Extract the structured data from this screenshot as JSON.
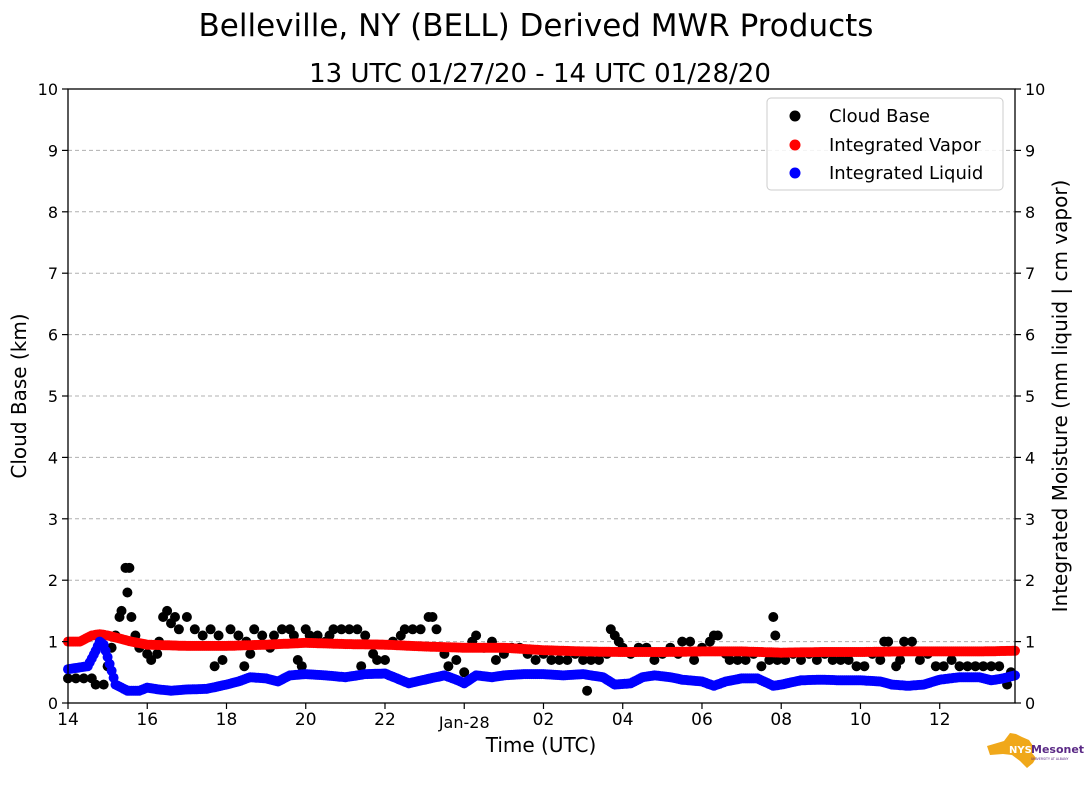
{
  "chart_data": {
    "type": "scatter",
    "title": "Belleville, NY (BELL) Derived MWR Products",
    "subtitle": "13 UTC 01/27/20 - 14 UTC 01/28/20",
    "xlabel": "Time (UTC)",
    "ylabel": "Cloud Base (km)",
    "ylabel_right": "Integrated Moisture (mm liquid | cm vapor)",
    "xlim": [
      14,
      37.9
    ],
    "ylim": [
      0,
      10
    ],
    "x_unit": "hours since 00 UTC 01/27/20",
    "grid": "y-dashed",
    "legend_position": "top-right",
    "x_ticks": [
      {
        "x": 14,
        "label": "14"
      },
      {
        "x": 16,
        "label": "16"
      },
      {
        "x": 18,
        "label": "18"
      },
      {
        "x": 20,
        "label": "20"
      },
      {
        "x": 22,
        "label": "22"
      },
      {
        "x": 24,
        "label": "Jan-28"
      },
      {
        "x": 26,
        "label": "02"
      },
      {
        "x": 28,
        "label": "04"
      },
      {
        "x": 30,
        "label": "06"
      },
      {
        "x": 32,
        "label": "08"
      },
      {
        "x": 34,
        "label": "10"
      },
      {
        "x": 36,
        "label": "12"
      }
    ],
    "y_ticks": [
      "0",
      "1",
      "2",
      "3",
      "4",
      "5",
      "6",
      "7",
      "8",
      "9",
      "10"
    ],
    "series": [
      {
        "name": "Cloud Base",
        "color": "#000000",
        "points": [
          [
            14.0,
            0.4
          ],
          [
            14.2,
            0.4
          ],
          [
            14.4,
            0.4
          ],
          [
            14.6,
            0.4
          ],
          [
            14.7,
            0.3
          ],
          [
            14.9,
            0.3
          ],
          [
            15.0,
            0.6
          ],
          [
            15.1,
            0.9
          ],
          [
            15.2,
            1.1
          ],
          [
            15.3,
            1.4
          ],
          [
            15.35,
            1.5
          ],
          [
            15.45,
            2.2
          ],
          [
            15.5,
            1.8
          ],
          [
            15.55,
            2.2
          ],
          [
            15.6,
            1.4
          ],
          [
            15.7,
            1.1
          ],
          [
            15.8,
            0.9
          ],
          [
            16.0,
            0.8
          ],
          [
            16.1,
            0.7
          ],
          [
            16.25,
            0.8
          ],
          [
            16.3,
            1.0
          ],
          [
            16.4,
            1.4
          ],
          [
            16.5,
            1.5
          ],
          [
            16.6,
            1.3
          ],
          [
            16.7,
            1.4
          ],
          [
            16.8,
            1.2
          ],
          [
            17.0,
            1.4
          ],
          [
            17.2,
            1.2
          ],
          [
            17.4,
            1.1
          ],
          [
            17.6,
            1.2
          ],
          [
            17.7,
            0.6
          ],
          [
            17.8,
            1.1
          ],
          [
            17.9,
            0.7
          ],
          [
            18.1,
            1.2
          ],
          [
            18.3,
            1.1
          ],
          [
            18.45,
            0.6
          ],
          [
            18.5,
            1.0
          ],
          [
            18.6,
            0.8
          ],
          [
            18.7,
            1.2
          ],
          [
            18.9,
            1.1
          ],
          [
            19.1,
            0.9
          ],
          [
            19.2,
            1.1
          ],
          [
            19.4,
            1.2
          ],
          [
            19.6,
            1.2
          ],
          [
            19.7,
            1.1
          ],
          [
            19.8,
            0.7
          ],
          [
            19.9,
            0.6
          ],
          [
            20.0,
            1.2
          ],
          [
            20.1,
            1.1
          ],
          [
            20.3,
            1.1
          ],
          [
            20.5,
            1.0
          ],
          [
            20.6,
            1.1
          ],
          [
            20.7,
            1.2
          ],
          [
            20.9,
            1.2
          ],
          [
            21.1,
            1.2
          ],
          [
            21.3,
            1.2
          ],
          [
            21.4,
            0.6
          ],
          [
            21.5,
            1.1
          ],
          [
            21.7,
            0.8
          ],
          [
            21.8,
            0.7
          ],
          [
            22.0,
            0.7
          ],
          [
            22.2,
            1.0
          ],
          [
            22.4,
            1.1
          ],
          [
            22.5,
            1.2
          ],
          [
            22.7,
            1.2
          ],
          [
            22.9,
            1.2
          ],
          [
            23.1,
            1.4
          ],
          [
            23.2,
            1.4
          ],
          [
            23.3,
            1.2
          ],
          [
            23.5,
            0.8
          ],
          [
            23.6,
            0.6
          ],
          [
            23.8,
            0.7
          ],
          [
            24.0,
            0.5
          ],
          [
            24.2,
            1.0
          ],
          [
            24.3,
            1.1
          ],
          [
            24.5,
            0.9
          ],
          [
            24.7,
            1.0
          ],
          [
            24.8,
            0.7
          ],
          [
            25.0,
            0.8
          ],
          [
            25.2,
            0.9
          ],
          [
            25.4,
            0.9
          ],
          [
            25.6,
            0.8
          ],
          [
            25.8,
            0.7
          ],
          [
            26.0,
            0.8
          ],
          [
            26.2,
            0.7
          ],
          [
            26.4,
            0.7
          ],
          [
            26.6,
            0.7
          ],
          [
            26.8,
            0.8
          ],
          [
            27.0,
            0.7
          ],
          [
            27.1,
            0.2
          ],
          [
            27.2,
            0.7
          ],
          [
            27.4,
            0.7
          ],
          [
            27.6,
            0.8
          ],
          [
            27.7,
            1.2
          ],
          [
            27.8,
            1.1
          ],
          [
            27.9,
            1.0
          ],
          [
            28.0,
            0.9
          ],
          [
            28.2,
            0.8
          ],
          [
            28.4,
            0.9
          ],
          [
            28.6,
            0.9
          ],
          [
            28.8,
            0.7
          ],
          [
            29.0,
            0.8
          ],
          [
            29.2,
            0.9
          ],
          [
            29.4,
            0.8
          ],
          [
            29.5,
            1.0
          ],
          [
            29.7,
            1.0
          ],
          [
            29.8,
            0.7
          ],
          [
            30.0,
            0.9
          ],
          [
            30.2,
            1.0
          ],
          [
            30.3,
            1.1
          ],
          [
            30.4,
            1.1
          ],
          [
            30.6,
            0.8
          ],
          [
            30.7,
            0.7
          ],
          [
            30.9,
            0.7
          ],
          [
            31.1,
            0.7
          ],
          [
            31.3,
            0.8
          ],
          [
            31.5,
            0.6
          ],
          [
            31.7,
            0.7
          ],
          [
            31.8,
            1.4
          ],
          [
            31.85,
            1.1
          ],
          [
            31.9,
            0.7
          ],
          [
            32.1,
            0.7
          ],
          [
            32.3,
            0.8
          ],
          [
            32.5,
            0.7
          ],
          [
            32.7,
            0.8
          ],
          [
            32.9,
            0.7
          ],
          [
            33.1,
            0.8
          ],
          [
            33.3,
            0.7
          ],
          [
            33.5,
            0.7
          ],
          [
            33.7,
            0.7
          ],
          [
            33.9,
            0.6
          ],
          [
            34.1,
            0.6
          ],
          [
            34.3,
            0.8
          ],
          [
            34.5,
            0.7
          ],
          [
            34.6,
            1.0
          ],
          [
            34.7,
            1.0
          ],
          [
            34.9,
            0.6
          ],
          [
            35.0,
            0.7
          ],
          [
            35.1,
            1.0
          ],
          [
            35.3,
            1.0
          ],
          [
            35.5,
            0.7
          ],
          [
            35.7,
            0.8
          ],
          [
            35.9,
            0.6
          ],
          [
            36.1,
            0.6
          ],
          [
            36.3,
            0.7
          ],
          [
            36.5,
            0.6
          ],
          [
            36.7,
            0.6
          ],
          [
            36.9,
            0.6
          ],
          [
            37.1,
            0.6
          ],
          [
            37.3,
            0.6
          ],
          [
            37.5,
            0.6
          ],
          [
            37.7,
            0.3
          ],
          [
            37.8,
            0.5
          ]
        ]
      },
      {
        "name": "Integrated Vapor",
        "color": "#ff0000",
        "points": [
          [
            14.0,
            1.0
          ],
          [
            14.3,
            1.0
          ],
          [
            14.6,
            1.1
          ],
          [
            14.8,
            1.12
          ],
          [
            15.0,
            1.1
          ],
          [
            15.3,
            1.05
          ],
          [
            15.6,
            1.0
          ],
          [
            16.0,
            0.95
          ],
          [
            17.0,
            0.93
          ],
          [
            18.0,
            0.93
          ],
          [
            19.0,
            0.95
          ],
          [
            20.0,
            0.98
          ],
          [
            20.5,
            0.97
          ],
          [
            21.0,
            0.96
          ],
          [
            22.0,
            0.95
          ],
          [
            23.0,
            0.92
          ],
          [
            24.0,
            0.9
          ],
          [
            25.0,
            0.9
          ],
          [
            26.0,
            0.86
          ],
          [
            27.0,
            0.84
          ],
          [
            28.0,
            0.83
          ],
          [
            29.0,
            0.83
          ],
          [
            30.0,
            0.84
          ],
          [
            31.0,
            0.84
          ],
          [
            32.0,
            0.82
          ],
          [
            33.0,
            0.83
          ],
          [
            34.0,
            0.83
          ],
          [
            35.0,
            0.84
          ],
          [
            36.0,
            0.84
          ],
          [
            37.0,
            0.84
          ],
          [
            37.9,
            0.85
          ]
        ]
      },
      {
        "name": "Integrated Liquid",
        "color": "#0000ff",
        "points": [
          [
            14.0,
            0.55
          ],
          [
            14.2,
            0.57
          ],
          [
            14.5,
            0.6
          ],
          [
            14.7,
            0.85
          ],
          [
            14.8,
            1.0
          ],
          [
            14.9,
            0.95
          ],
          [
            15.0,
            0.75
          ],
          [
            15.2,
            0.3
          ],
          [
            15.5,
            0.2
          ],
          [
            15.8,
            0.2
          ],
          [
            16.0,
            0.25
          ],
          [
            16.3,
            0.22
          ],
          [
            16.6,
            0.2
          ],
          [
            17.0,
            0.22
          ],
          [
            17.5,
            0.23
          ],
          [
            18.0,
            0.3
          ],
          [
            18.3,
            0.35
          ],
          [
            18.6,
            0.42
          ],
          [
            19.0,
            0.4
          ],
          [
            19.3,
            0.35
          ],
          [
            19.6,
            0.45
          ],
          [
            20.0,
            0.47
          ],
          [
            20.5,
            0.45
          ],
          [
            21.0,
            0.42
          ],
          [
            21.5,
            0.47
          ],
          [
            22.0,
            0.48
          ],
          [
            22.3,
            0.4
          ],
          [
            22.6,
            0.32
          ],
          [
            23.0,
            0.38
          ],
          [
            23.5,
            0.45
          ],
          [
            23.8,
            0.38
          ],
          [
            24.0,
            0.32
          ],
          [
            24.3,
            0.45
          ],
          [
            24.7,
            0.42
          ],
          [
            25.0,
            0.45
          ],
          [
            25.5,
            0.47
          ],
          [
            26.0,
            0.47
          ],
          [
            26.5,
            0.45
          ],
          [
            27.0,
            0.47
          ],
          [
            27.5,
            0.42
          ],
          [
            27.8,
            0.3
          ],
          [
            28.2,
            0.32
          ],
          [
            28.5,
            0.42
          ],
          [
            28.8,
            0.45
          ],
          [
            29.2,
            0.42
          ],
          [
            29.5,
            0.38
          ],
          [
            30.0,
            0.35
          ],
          [
            30.3,
            0.28
          ],
          [
            30.6,
            0.35
          ],
          [
            31.0,
            0.4
          ],
          [
            31.4,
            0.4
          ],
          [
            31.8,
            0.28
          ],
          [
            32.0,
            0.3
          ],
          [
            32.5,
            0.37
          ],
          [
            33.0,
            0.38
          ],
          [
            33.5,
            0.37
          ],
          [
            34.0,
            0.37
          ],
          [
            34.5,
            0.35
          ],
          [
            34.8,
            0.3
          ],
          [
            35.2,
            0.28
          ],
          [
            35.6,
            0.3
          ],
          [
            36.0,
            0.38
          ],
          [
            36.5,
            0.42
          ],
          [
            37.0,
            0.42
          ],
          [
            37.3,
            0.37
          ],
          [
            37.6,
            0.4
          ],
          [
            37.9,
            0.45
          ]
        ]
      }
    ]
  },
  "logo": {
    "brand_prefix": "NYS",
    "brand_name": "Mesonet",
    "institution": "UNIVERSITY AT ALBANY",
    "map_color": "#f0a81a",
    "text_color": "#5b2a86"
  }
}
